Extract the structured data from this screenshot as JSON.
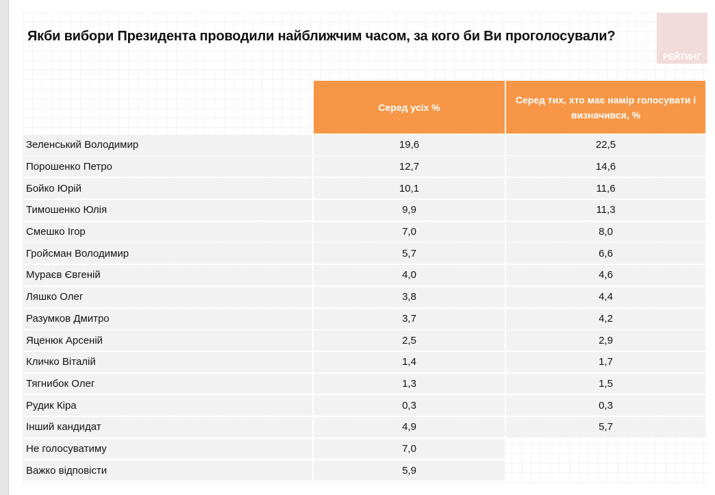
{
  "title": "Якби вибори Президента проводили найближчим часом, за кого би Ви проголосували?",
  "logo_text": "РЕЙТИНГ",
  "colors": {
    "header": "#f79646",
    "row": "#f2f2f2",
    "logo": "#f2dcdb"
  },
  "table": {
    "headers": [
      "",
      "Серед усіх %",
      "Серед тих, хто має намір голосувати і визначився, %"
    ],
    "rows": [
      {
        "name": "Зеленський Володимир",
        "all": "19,6",
        "decided": "22,5"
      },
      {
        "name": "Порошенко Петро",
        "all": "12,7",
        "decided": "14,6"
      },
      {
        "name": "Бойко Юрій",
        "all": "10,1",
        "decided": "11,6"
      },
      {
        "name": "Тимошенко Юлія",
        "all": "9,9",
        "decided": "11,3"
      },
      {
        "name": "Смешко Ігор",
        "all": "7,0",
        "decided": "8,0"
      },
      {
        "name": "Гройсман Володимир",
        "all": "5,7",
        "decided": "6,6"
      },
      {
        "name": "Мураєв Євгеній",
        "all": "4,0",
        "decided": "4,6"
      },
      {
        "name": "Ляшко Олег",
        "all": "3,8",
        "decided": "4,4"
      },
      {
        "name": "Разумков Дмитро",
        "all": "3,7",
        "decided": "4,2"
      },
      {
        "name": "Яценюк  Арсеній",
        "all": "2,5",
        "decided": "2,9"
      },
      {
        "name": "Кличко Віталій",
        "all": "1,4",
        "decided": "1,7"
      },
      {
        "name": "Тягнибок Олег",
        "all": "1,3",
        "decided": "1,5"
      },
      {
        "name": "Рудик Кіра",
        "all": "0,3",
        "decided": "0,3"
      },
      {
        "name": "Інший кандидат",
        "all": "4,9",
        "decided": "5,7"
      },
      {
        "name": "Не голосуватиму",
        "all": "7,0",
        "decided": null
      },
      {
        "name": "Важко відповісти",
        "all": "5,9",
        "decided": null
      }
    ]
  }
}
